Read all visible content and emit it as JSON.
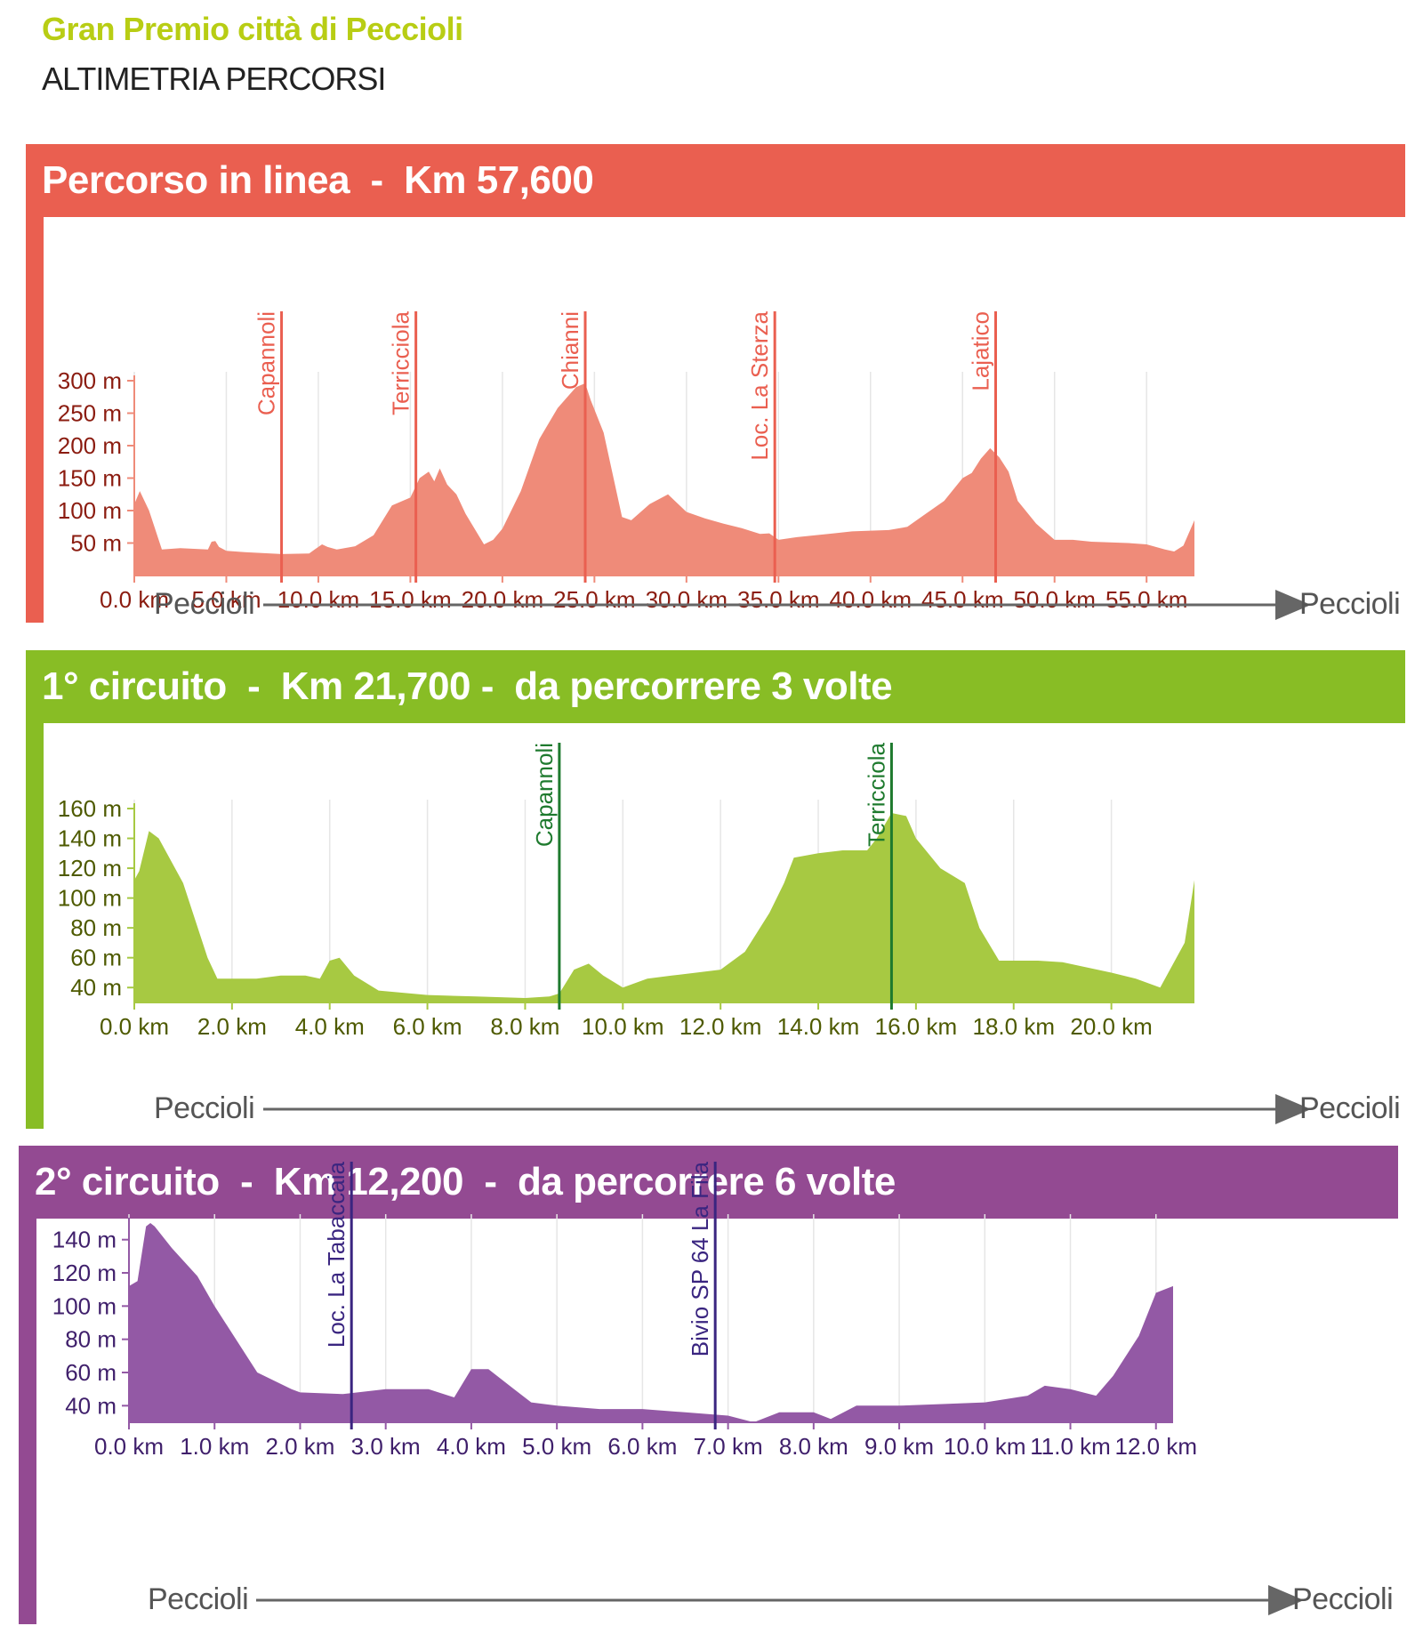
{
  "title": "Gran Premio città di Peccioli",
  "subtitle": "ALTIMETRIA PERCORSI",
  "colors": {
    "title": "#b8cd14",
    "panel1": "#ea5f50",
    "panel2": "#88bd25",
    "panel3": "#934a92",
    "panel1_fill": "#ef8b79",
    "panel2_fill": "#a7c942",
    "panel3_fill": "#9359a5",
    "panel1_text": "#8b1c10",
    "panel2_text": "#4e5a00",
    "panel3_text": "#3f1f6b",
    "panel2_marker": "#1e7a2e",
    "panel3_marker": "#3a2580"
  },
  "panels": [
    {
      "header": "Percorso in linea  -  Km 57,600",
      "start": "Peccioli",
      "end": "Peccioli"
    },
    {
      "header": "1° circuito  -  Km 21,700 -  da percorrere 3 volte",
      "start": "Peccioli",
      "end": "Peccioli"
    },
    {
      "header": "2° circuito  -  Km 12,200  -  da percorrere 6 volte",
      "start": "Peccioli",
      "end": "Peccioli"
    }
  ],
  "chart_data": [
    {
      "type": "area",
      "xlim": [
        0,
        57.6
      ],
      "ylim": [
        0,
        300
      ],
      "x_ticks": [
        0,
        5,
        10,
        15,
        20,
        25,
        30,
        35,
        40,
        45,
        50,
        55
      ],
      "x_tick_labels": [
        "0.0 km",
        "5.0 km",
        "10.0 km",
        "15.0 km",
        "20.0 km",
        "25.0 km",
        "30.0 km",
        "35.0 km",
        "40.0 km",
        "45.0 km",
        "50.0 km",
        "55.0 km"
      ],
      "y_ticks": [
        50,
        100,
        150,
        200,
        250,
        300
      ],
      "y_tick_labels": [
        "50 m",
        "100 m",
        "150 m",
        "200 m",
        "250 m",
        "300 m"
      ],
      "markers": [
        {
          "x": 8.0,
          "label": "Capannoli"
        },
        {
          "x": 15.3,
          "label": "Terricciola"
        },
        {
          "x": 24.5,
          "label": "Chianni"
        },
        {
          "x": 34.8,
          "label": "Loc. La Sterza"
        },
        {
          "x": 46.8,
          "label": "Lajatico"
        }
      ],
      "x": [
        0,
        0.3,
        0.8,
        1.5,
        2.5,
        4,
        4.2,
        4.4,
        4.6,
        5,
        6,
        8,
        9.5,
        9.8,
        10.2,
        10.5,
        11,
        12,
        13,
        14,
        15,
        15.5,
        16,
        16.3,
        16.6,
        17,
        17.5,
        18,
        19,
        19.5,
        20,
        21,
        22,
        23,
        24,
        24.5,
        24.8,
        25.5,
        26.5,
        27,
        28,
        29,
        30,
        31,
        32,
        33,
        34,
        34.5,
        35,
        36,
        37,
        38,
        39,
        40,
        41,
        42,
        43,
        44,
        45,
        45.5,
        46,
        46.5,
        47,
        47.5,
        48,
        49,
        50,
        51,
        52,
        53,
        54,
        55,
        56,
        56.5,
        57,
        57.6
      ],
      "values": [
        110,
        130,
        100,
        40,
        42,
        40,
        52,
        53,
        44,
        38,
        36,
        33,
        34,
        40,
        48,
        44,
        40,
        45,
        62,
        108,
        120,
        150,
        160,
        145,
        165,
        140,
        125,
        95,
        48,
        55,
        72,
        130,
        210,
        258,
        290,
        296,
        270,
        220,
        90,
        85,
        110,
        125,
        98,
        88,
        80,
        73,
        64,
        65,
        55,
        59,
        62,
        65,
        68,
        69,
        70,
        75,
        95,
        115,
        150,
        158,
        180,
        196,
        182,
        160,
        115,
        80,
        55,
        55,
        52,
        51,
        50,
        48,
        40,
        37,
        46,
        85
      ]
    },
    {
      "type": "area",
      "xlim": [
        0,
        21.7
      ],
      "ylim": [
        30,
        160
      ],
      "x_ticks": [
        0,
        2,
        4,
        6,
        8,
        10,
        12,
        14,
        16,
        18,
        20
      ],
      "x_tick_labels": [
        "0.0 km",
        "2.0 km",
        "4.0 km",
        "6.0 km",
        "8.0 km",
        "10.0 km",
        "12.0 km",
        "14.0 km",
        "16.0 km",
        "18.0 km",
        "20.0 km"
      ],
      "y_ticks": [
        40,
        60,
        80,
        100,
        120,
        140,
        160
      ],
      "y_tick_labels": [
        "40 m",
        "60 m",
        "80 m",
        "100 m",
        "120 m",
        "140 m",
        "160 m"
      ],
      "markers": [
        {
          "x": 8.7,
          "label": "Capannoli"
        },
        {
          "x": 15.5,
          "label": "Terricciola"
        }
      ],
      "x": [
        0,
        0.1,
        0.3,
        0.5,
        1.0,
        1.5,
        1.7,
        2.0,
        2.5,
        3.0,
        3.5,
        3.8,
        4.0,
        4.2,
        4.5,
        5.0,
        6.0,
        7.0,
        8.0,
        8.5,
        8.7,
        9.0,
        9.3,
        9.6,
        10.0,
        10.5,
        11.0,
        11.5,
        12.0,
        12.5,
        13.0,
        13.3,
        13.5,
        14.0,
        14.5,
        15.0,
        15.2,
        15.5,
        15.8,
        16.0,
        16.5,
        17.0,
        17.3,
        17.7,
        18.5,
        19.0,
        20.0,
        20.5,
        21.0,
        21.5,
        21.7
      ],
      "values": [
        112,
        118,
        145,
        140,
        110,
        60,
        46,
        46,
        46,
        48,
        48,
        46,
        58,
        60,
        48,
        38,
        35,
        34,
        33,
        34,
        36,
        52,
        56,
        48,
        40,
        46,
        48,
        50,
        52,
        64,
        90,
        110,
        127,
        130,
        132,
        132,
        140,
        157,
        155,
        140,
        120,
        110,
        80,
        58,
        58,
        57,
        50,
        46,
        40,
        70,
        112
      ]
    },
    {
      "type": "area",
      "xlim": [
        0,
        12.2
      ],
      "ylim": [
        30,
        150
      ],
      "x_ticks": [
        0,
        1,
        2,
        3,
        4,
        5,
        6,
        7,
        8,
        9,
        10,
        11,
        12
      ],
      "x_tick_labels": [
        "0.0 km",
        "1.0 km",
        "2.0 km",
        "3.0 km",
        "4.0 km",
        "5.0 km",
        "6.0 km",
        "7.0 km",
        "8.0 km",
        "9.0 km",
        "10.0 km",
        "11.0 km",
        "12.0 km"
      ],
      "y_ticks": [
        40,
        60,
        80,
        100,
        120,
        140
      ],
      "y_tick_labels": [
        "40 m",
        "60 m",
        "80 m",
        "100 m",
        "120 m",
        "140 m"
      ],
      "markers": [
        {
          "x": 2.6,
          "label": "Loc. La Tabaccaia"
        },
        {
          "x": 6.85,
          "label": "Bivio SP 64 La Fila"
        }
      ],
      "x": [
        0,
        0.1,
        0.2,
        0.25,
        0.3,
        0.5,
        0.8,
        1.0,
        1.5,
        1.9,
        2.0,
        2.5,
        3.0,
        3.5,
        3.8,
        4.0,
        4.2,
        4.5,
        4.7,
        5.0,
        5.5,
        6.0,
        6.5,
        7.0,
        7.3,
        7.6,
        8.0,
        8.2,
        8.5,
        9.0,
        9.5,
        10.0,
        10.5,
        10.7,
        11.0,
        11.3,
        11.5,
        11.8,
        12.0,
        12.2
      ],
      "values": [
        112,
        115,
        148,
        150,
        148,
        135,
        118,
        100,
        60,
        50,
        48,
        47,
        50,
        50,
        45,
        62,
        62,
        50,
        42,
        40,
        38,
        38,
        36,
        34,
        30,
        36,
        36,
        32,
        40,
        40,
        41,
        42,
        46,
        52,
        50,
        46,
        58,
        82,
        108,
        112
      ]
    }
  ]
}
